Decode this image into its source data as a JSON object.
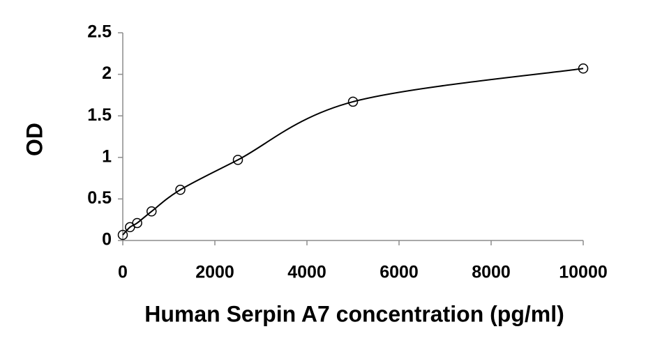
{
  "chart_data": {
    "type": "scatter",
    "x_label": "Human Serpin A7 concentration (pg/ml)",
    "y_label": "OD",
    "x": [
      0,
      156.25,
      312.5,
      625,
      1250,
      2500,
      5000,
      10000
    ],
    "values": [
      0.067,
      0.16,
      0.21,
      0.35,
      0.61,
      0.97,
      1.67,
      2.07
    ],
    "color": "#000000",
    "trendline": true,
    "xlim": [
      0,
      10000
    ],
    "xticks": [
      0,
      2000,
      4000,
      6000,
      8000,
      10000
    ],
    "ylim": [
      0,
      2.5
    ],
    "yticks": [
      0,
      0.5,
      1,
      1.5,
      2,
      2.5
    ]
  }
}
